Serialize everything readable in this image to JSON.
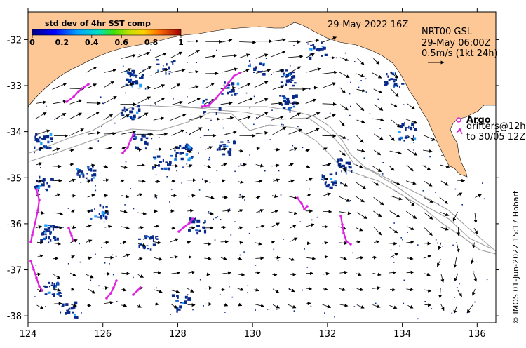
{
  "figure": {
    "timestamp": "29-May-2022 16Z",
    "product": "NRT00 GSL",
    "velocity_time": "29-May 06:00Z",
    "scale_label": "0.5m/s (1kt 24h)",
    "credit": "© IMOS 01-Jun-2022 15:17 Hobart"
  },
  "colorbar": {
    "title": "std dev of 4hr SST comp",
    "ticks": [
      "0",
      "0.2",
      "0.4",
      "0.6",
      "0.8",
      "1"
    ]
  },
  "legend": {
    "argo_label": "Argo",
    "drifters_line1": "drifters@12h",
    "drifters_line2": "to 30/05 12Z"
  },
  "axes": {
    "x_ticks": [
      "124",
      "126",
      "128",
      "130",
      "132",
      "134",
      "136"
    ],
    "y_ticks": [
      "-32",
      "-33",
      "-34",
      "-35",
      "-36",
      "-37",
      "-38"
    ]
  },
  "colors": {
    "land": "#fdc896",
    "patch": "#0a2a8a",
    "drifter": "#e020e0",
    "isobath": "#a0a0a0"
  }
}
